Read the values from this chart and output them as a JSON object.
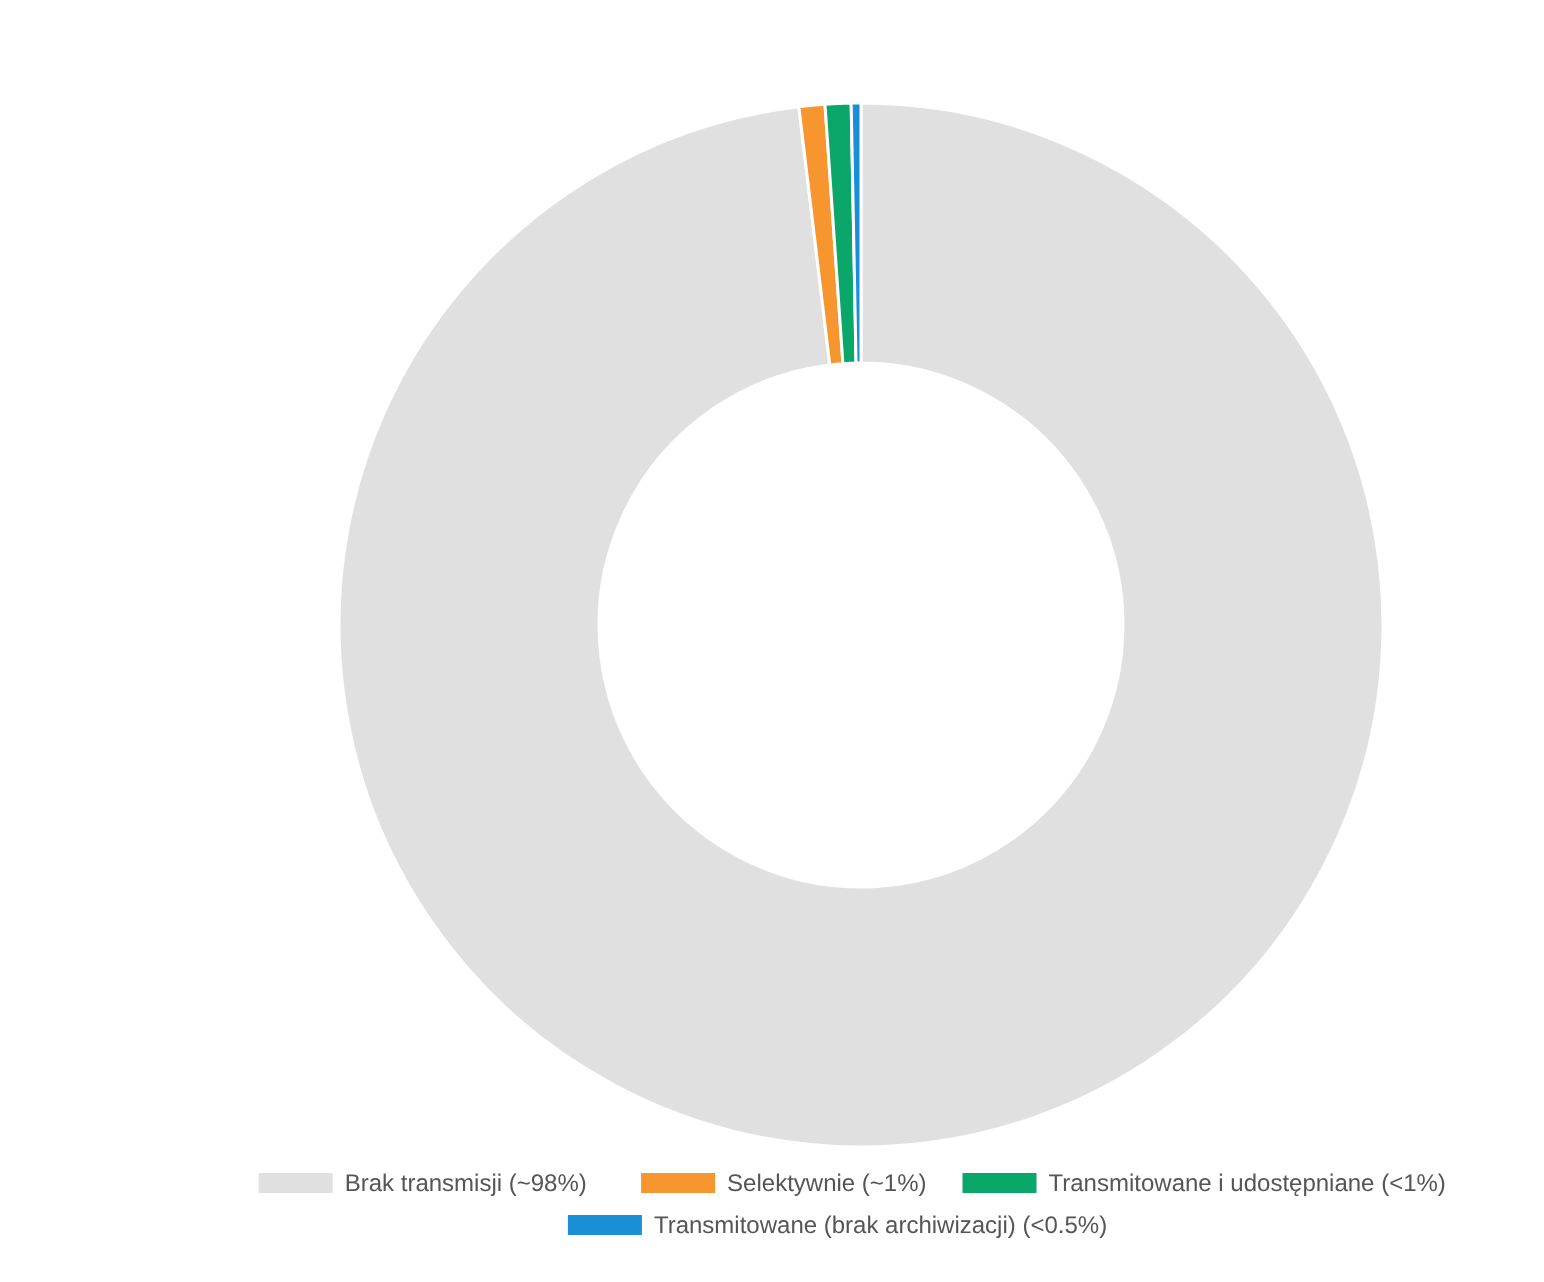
{
  "chart_data": {
    "type": "donut",
    "categories": [
      "Brak transmisji (~98%)",
      "Selektywnie (~1%)",
      "Transmitowane i udostępniane (<1%)",
      "Transmitowane (brak archiwizacji) (<0.5%)"
    ],
    "values": [
      98.1,
      0.8,
      0.8,
      0.3
    ],
    "colors": [
      "#e0e0e0",
      "#f7952f",
      "#0aa66a",
      "#1a8fd6"
    ],
    "legend": "bottom"
  }
}
